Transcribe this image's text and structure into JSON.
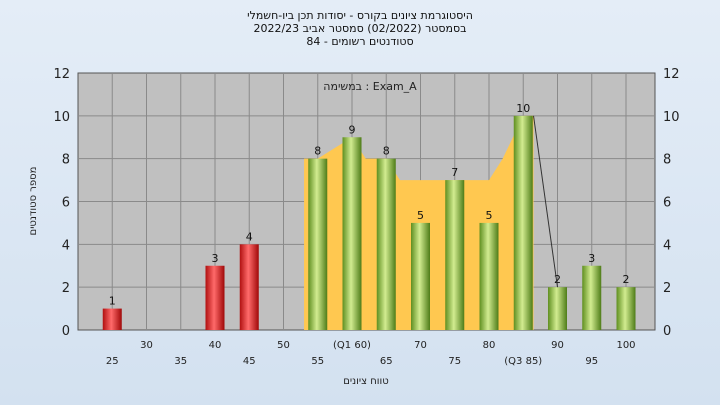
{
  "titles": {
    "line1": "היסטוגרמת ציונים בקורס - יסודות תכן ביו-חשמלי",
    "line2": "בסמסטר  (02/2022)  סמסטר אביב 2022/23",
    "line3": "סטודנטים רשומים - 84"
  },
  "chart_data": {
    "type": "bar",
    "annotation": "במשימה : Exam_A",
    "xlabel": "טווח ציונים",
    "ylabel": "מספר סטודנטים",
    "ylim": [
      0,
      12
    ],
    "yticks": [
      0,
      2,
      4,
      6,
      8,
      10,
      12
    ],
    "xlim": [
      20,
      105
    ],
    "x_tick_labels": [
      {
        "x": 25,
        "label": "25",
        "row": 2
      },
      {
        "x": 30,
        "label": "30",
        "row": 1
      },
      {
        "x": 35,
        "label": "35",
        "row": 2
      },
      {
        "x": 40,
        "label": "40",
        "row": 1
      },
      {
        "x": 45,
        "label": "45",
        "row": 2
      },
      {
        "x": 50,
        "label": "50",
        "row": 1
      },
      {
        "x": 55,
        "label": "55",
        "row": 2
      },
      {
        "x": 60,
        "label": "(Q1 60)",
        "row": 1
      },
      {
        "x": 65,
        "label": "65",
        "row": 2
      },
      {
        "x": 70,
        "label": "70",
        "row": 1
      },
      {
        "x": 75,
        "label": "75",
        "row": 2
      },
      {
        "x": 80,
        "label": "80",
        "row": 1
      },
      {
        "x": 85,
        "label": "(Q3 85)",
        "row": 2
      },
      {
        "x": 90,
        "label": "90",
        "row": 1
      },
      {
        "x": 95,
        "label": "95",
        "row": 2
      },
      {
        "x": 100,
        "label": "100",
        "row": 1
      }
    ],
    "bars": [
      {
        "x": 25,
        "value": 1,
        "color": "red"
      },
      {
        "x": 40,
        "value": 3,
        "color": "red"
      },
      {
        "x": 45,
        "value": 4,
        "color": "red"
      },
      {
        "x": 55,
        "value": 8,
        "color": "green"
      },
      {
        "x": 60,
        "value": 9,
        "color": "green"
      },
      {
        "x": 65,
        "value": 8,
        "color": "green"
      },
      {
        "x": 70,
        "value": 5,
        "color": "green"
      },
      {
        "x": 75,
        "value": 7,
        "color": "green"
      },
      {
        "x": 80,
        "value": 5,
        "color": "green"
      },
      {
        "x": 85,
        "value": 10,
        "color": "green"
      },
      {
        "x": 90,
        "value": 2,
        "color": "green"
      },
      {
        "x": 95,
        "value": 3,
        "color": "green"
      },
      {
        "x": 100,
        "value": 2,
        "color": "green"
      }
    ],
    "band": {
      "color": "#ffc850",
      "points": [
        [
          53,
          8
        ],
        [
          55,
          8
        ],
        [
          60,
          9
        ],
        [
          62,
          8
        ],
        [
          65,
          8
        ],
        [
          67,
          7
        ],
        [
          70,
          7
        ],
        [
          72,
          7
        ],
        [
          75,
          7
        ],
        [
          77,
          7
        ],
        [
          80,
          7
        ],
        [
          82,
          8
        ],
        [
          85,
          10
        ],
        [
          86.5,
          10
        ],
        [
          86.5,
          0
        ],
        [
          53,
          0
        ]
      ]
    },
    "trend_line": [
      [
        86.5,
        10
      ],
      [
        90,
        2
      ]
    ],
    "colors": {
      "plot_bg": "#c0c0c0",
      "grid": "#8a8a8a",
      "red_bar": "#e02828",
      "green_bar": "#9ccc48"
    }
  }
}
